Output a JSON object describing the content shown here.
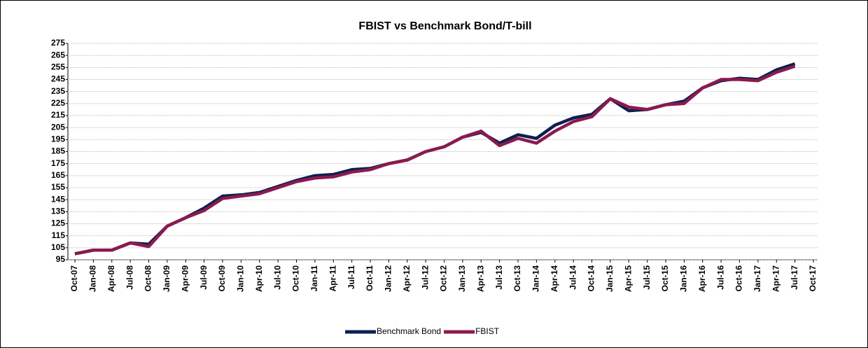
{
  "chart_data": {
    "type": "line",
    "title": "FBIST vs Benchmark Bond/T-bill",
    "categories": [
      "Oct-07",
      "Jan-08",
      "Apr-08",
      "Jul-08",
      "Oct-08",
      "Jan-09",
      "Apr-09",
      "Jul-09",
      "Oct-09",
      "Jan-10",
      "Apr-10",
      "Jul-10",
      "Oct-10",
      "Jan-11",
      "Apr-11",
      "Jul-11",
      "Oct-11",
      "Jan-12",
      "Apr-12",
      "Jul-12",
      "Oct-12",
      "Jan-13",
      "Apr-13",
      "Jul-13",
      "Oct-13",
      "Jan-14",
      "Apr-14",
      "Jul-14",
      "Oct-14",
      "Jan-15",
      "Apr-15",
      "Jul-15",
      "Oct-15",
      "Jan-16",
      "Apr-16",
      "Jul-16",
      "Oct-16",
      "Jan-17",
      "Apr-17",
      "Jul-17",
      "Oct-17"
    ],
    "series": [
      {
        "name": "Benchmark Bond",
        "color": "#0d1f4f",
        "values": [
          100,
          103,
          103,
          109,
          108,
          123,
          130,
          138,
          148,
          149,
          151,
          156,
          161,
          165,
          166,
          170,
          171,
          175,
          178,
          185,
          189,
          197,
          201,
          192,
          199,
          196,
          207,
          213,
          216,
          229,
          219,
          220,
          224,
          227,
          238,
          244,
          246,
          245,
          253,
          258,
          null
        ]
      },
      {
        "name": "FBIST",
        "color": "#8b1a4f",
        "values": [
          100,
          103,
          103,
          109,
          106,
          123,
          130,
          136,
          146,
          148,
          150,
          155,
          160,
          163,
          164,
          168,
          170,
          175,
          178,
          185,
          189,
          197,
          202,
          190,
          196,
          192,
          202,
          210,
          214,
          229,
          222,
          220,
          224,
          225,
          238,
          245,
          245,
          244,
          251,
          256,
          null
        ]
      }
    ],
    "ylim": [
      95,
      275
    ],
    "yticks": [
      95,
      105,
      115,
      125,
      135,
      145,
      155,
      165,
      175,
      185,
      195,
      205,
      215,
      225,
      235,
      245,
      255,
      265,
      275
    ],
    "grid": true,
    "legend": "bottom"
  }
}
